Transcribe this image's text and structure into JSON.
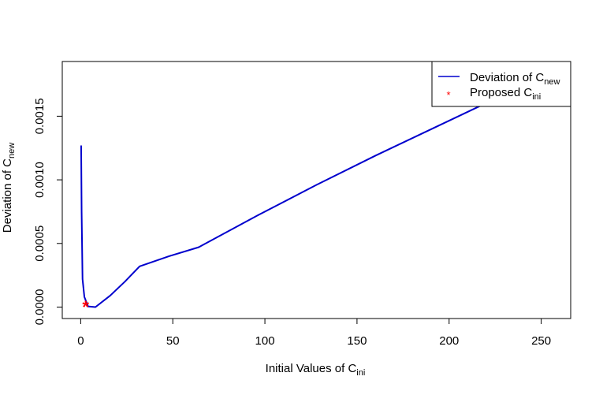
{
  "chart_data": {
    "type": "line",
    "xlabel": {
      "main": "Initial Values of C",
      "sub": "ini"
    },
    "ylabel": {
      "main": "Deviation of C",
      "sub": "new"
    },
    "xlim": [
      -10,
      266
    ],
    "ylim": [
      -9e-05,
      0.00193
    ],
    "x_ticks": [
      0,
      50,
      100,
      150,
      200,
      250
    ],
    "x_tick_labels": [
      "0",
      "50",
      "100",
      "150",
      "200",
      "250"
    ],
    "y_ticks": [
      0.0,
      0.0005,
      0.001,
      0.0015
    ],
    "y_tick_labels": [
      "0.0000",
      "0.0005",
      "0.0010",
      "0.0015"
    ],
    "grid": false,
    "legend_position": "top-right",
    "series": [
      {
        "name": "Deviation of C",
        "name_sub": "new",
        "type": "line",
        "color": "#0000CD",
        "x": [
          0.25,
          0.5,
          1,
          2,
          4,
          8,
          16,
          24,
          32,
          48,
          64,
          96,
          128,
          160,
          192,
          224,
          256
        ],
        "y": [
          0.00127,
          0.00075,
          0.00022,
          8e-05,
          5e-06,
          0.0,
          9e-05,
          0.0002,
          0.00032,
          0.0004,
          0.00047,
          0.00072,
          0.00096,
          0.00119,
          0.00141,
          0.00163,
          0.00185
        ]
      },
      {
        "name": "Proposed C",
        "name_sub": "ini",
        "type": "scatter",
        "marker": "*",
        "color": "#FF0000",
        "x": [
          2.7
        ],
        "y": [
          1e-05
        ]
      }
    ]
  }
}
